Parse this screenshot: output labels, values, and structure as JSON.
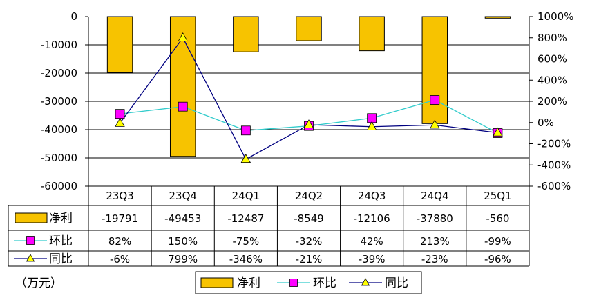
{
  "chart_data": {
    "type": "bar",
    "unit_note": "（万元）",
    "categories": [
      "23Q3",
      "23Q4",
      "24Q1",
      "24Q2",
      "24Q3",
      "24Q4",
      "25Q1"
    ],
    "series": [
      {
        "name": "净利",
        "kind": "bar",
        "axis": "left",
        "color": "#f7c300",
        "values": [
          -19791,
          -49453,
          -12487,
          -8549,
          -12106,
          -37880,
          -560
        ],
        "labels": [
          "-19791",
          "-49453",
          "-12487",
          "-8549",
          "-12106",
          "-37880",
          "-560"
        ]
      },
      {
        "name": "环比",
        "kind": "line",
        "axis": "right",
        "color": "#33cccc",
        "marker": "square",
        "marker_color": "#ff00ff",
        "values": [
          82,
          150,
          -75,
          -32,
          42,
          213,
          -99
        ],
        "labels": [
          "82%",
          "150%",
          "-75%",
          "-32%",
          "42%",
          "213%",
          "-99%"
        ]
      },
      {
        "name": "同比",
        "kind": "line",
        "axis": "right",
        "color": "#000080",
        "marker": "triangle",
        "marker_color": "#ffff00",
        "values": [
          -6,
          799,
          -346,
          -21,
          -39,
          -23,
          -96
        ],
        "labels": [
          "-6%",
          "799%",
          "-346%",
          "-21%",
          "-39%",
          "-23%",
          "-96%"
        ]
      }
    ],
    "left_axis": {
      "ylim": [
        -60000,
        0
      ],
      "ticks": [
        0,
        -10000,
        -20000,
        -30000,
        -40000,
        -50000,
        -60000
      ],
      "tick_labels": [
        "0",
        "-10000",
        "-20000",
        "-30000",
        "-40000",
        "-50000",
        "-60000"
      ]
    },
    "right_axis": {
      "ylim": [
        -600,
        1000
      ],
      "ticks": [
        1000,
        800,
        600,
        400,
        200,
        0,
        -200,
        -400,
        -600
      ],
      "tick_labels": [
        "1000%",
        "800%",
        "600%",
        "400%",
        "200%",
        "0%",
        "-200%",
        "-400%",
        "-600%"
      ]
    },
    "grid": "horizontal",
    "data_table": true,
    "legend_position": "bottom"
  }
}
